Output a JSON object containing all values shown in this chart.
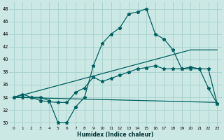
{
  "xlabel": "Humidex (Indice chaleur)",
  "bg_color": "#cce8e4",
  "grid_color": "#a8d4d0",
  "line_color": "#006060",
  "xlim": [
    -0.5,
    23.5
  ],
  "ylim": [
    29.5,
    49
  ],
  "xticks": [
    0,
    1,
    2,
    3,
    4,
    5,
    6,
    7,
    8,
    9,
    10,
    11,
    12,
    13,
    14,
    15,
    16,
    17,
    18,
    19,
    20,
    21,
    22,
    23
  ],
  "yticks": [
    30,
    32,
    34,
    36,
    38,
    40,
    42,
    44,
    46,
    48
  ],
  "line1_x": [
    0,
    1,
    2,
    3,
    4,
    5,
    6,
    7,
    8,
    9,
    10,
    11,
    12,
    13,
    14,
    15,
    16,
    17,
    18,
    19,
    20,
    21,
    22,
    23
  ],
  "line1_y": [
    34,
    34.5,
    34,
    34,
    33.5,
    30,
    30,
    32.5,
    34,
    39,
    42.5,
    44,
    45,
    47.2,
    47.5,
    48,
    44,
    43.2,
    41.5,
    38.5,
    38.5,
    38.5,
    35.5,
    33
  ],
  "line2_x": [
    0,
    1,
    2,
    3,
    4,
    5,
    6,
    7,
    8,
    9,
    10,
    11,
    12,
    13,
    14,
    15,
    16,
    17,
    18,
    19,
    20,
    21,
    22,
    23
  ],
  "line2_y": [
    34,
    34,
    34,
    33.5,
    33.3,
    33.2,
    33.2,
    34.8,
    35.5,
    37.2,
    36.5,
    37,
    37.5,
    38,
    38.5,
    38.7,
    39,
    38.5,
    38.5,
    38.5,
    38.8,
    38.5,
    38.5,
    33
  ],
  "line3_x": [
    0,
    23
  ],
  "line3_y": [
    34,
    33.2
  ],
  "line4_x": [
    0,
    20,
    23
  ],
  "line4_y": [
    34,
    41.5,
    41.5
  ]
}
